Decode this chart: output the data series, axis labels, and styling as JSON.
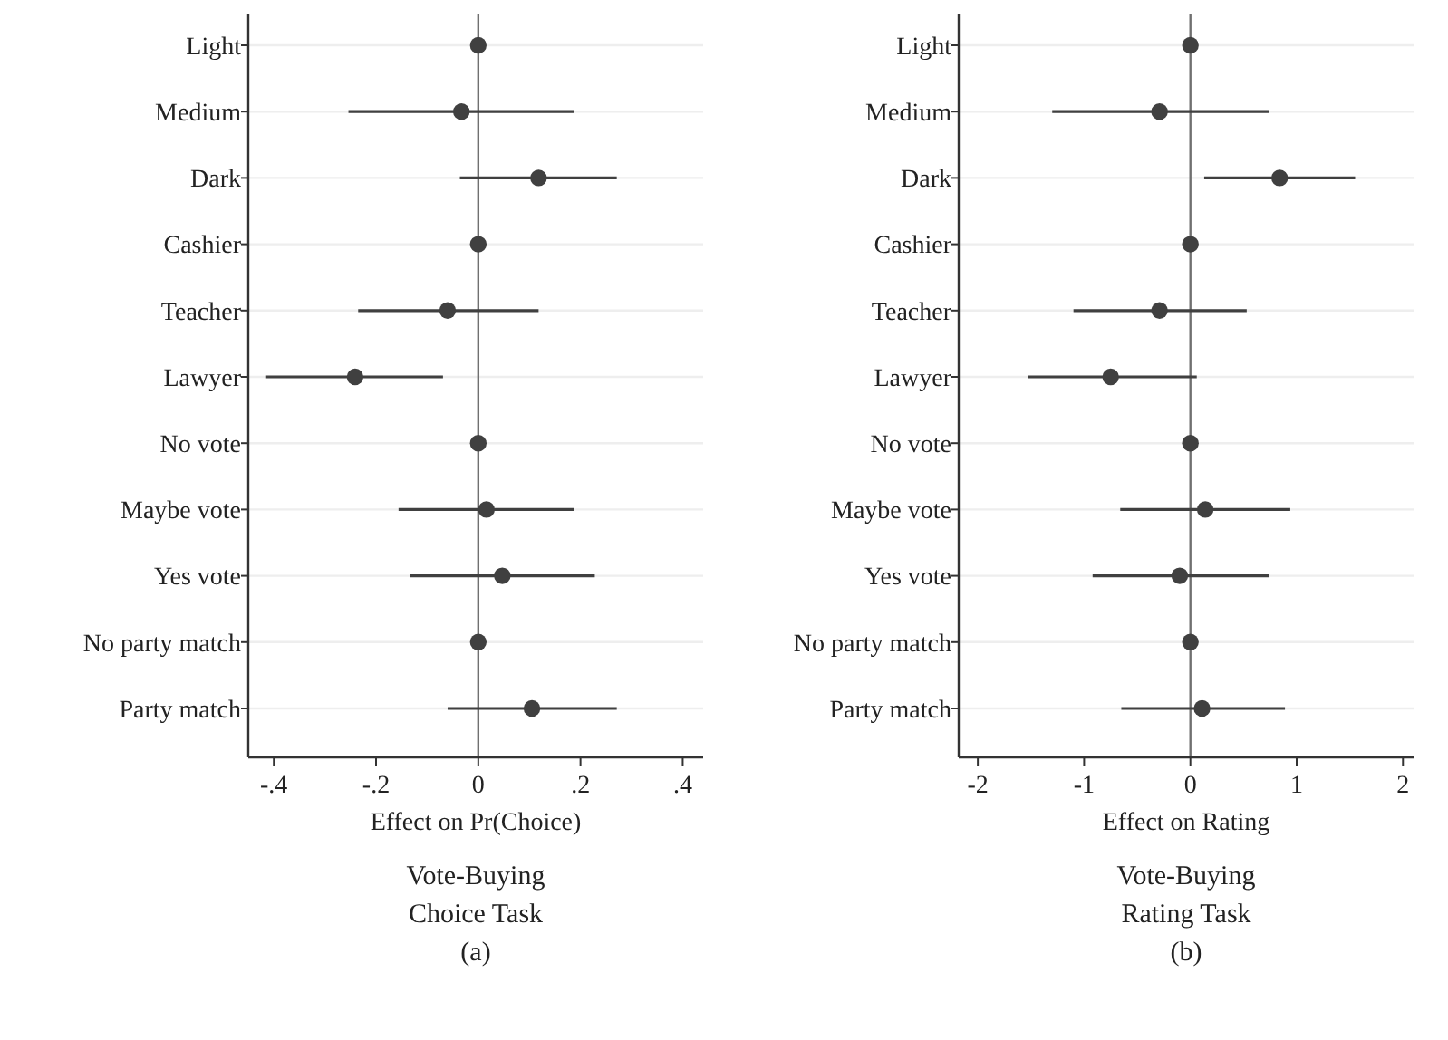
{
  "chart_data": [
    {
      "type": "scatter",
      "orientation": "horizontal",
      "categories": [
        "Light",
        "Medium",
        "Dark",
        "Cashier",
        "Teacher",
        "Lawyer",
        "No vote",
        "Maybe vote",
        "Yes vote",
        "No party match",
        "Party match"
      ],
      "series": [
        {
          "color": "#404040",
          "values": [
            0,
            -0.033,
            0.118,
            0,
            -0.06,
            -0.241,
            0,
            0.016,
            0.047,
            0,
            0.105
          ],
          "errors": [
            null,
            [
              -0.254,
              0.188
            ],
            [
              -0.036,
              0.271
            ],
            null,
            [
              -0.235,
              0.118
            ],
            [
              -0.415,
              -0.069
            ],
            null,
            [
              -0.156,
              0.188
            ],
            [
              -0.134,
              0.228
            ],
            null,
            [
              -0.06,
              0.271
            ]
          ]
        }
      ],
      "xlim": [
        -0.45,
        0.44
      ],
      "xticks": [
        {
          "value": -0.4,
          "label": "-.4"
        },
        {
          "value": -0.2,
          "label": "-.2"
        },
        0,
        {
          "value": 0.2,
          "label": ".2"
        },
        {
          "value": 0.4,
          "label": ".4"
        }
      ],
      "xlabel": "Effect on Pr(Choice)",
      "title": "Vote-Buying Choice Task",
      "subtitle": "(a)",
      "grid": "y",
      "marker": "circle",
      "ref_lines": [
        {
          "axis": "x",
          "value": 0,
          "color": "#707070"
        }
      ]
    },
    {
      "type": "scatter",
      "orientation": "horizontal",
      "categories": [
        "Light",
        "Medium",
        "Dark",
        "Cashier",
        "Teacher",
        "Lawyer",
        "No vote",
        "Maybe vote",
        "Yes vote",
        "No party match",
        "Party match"
      ],
      "series": [
        {
          "color": "#404040",
          "values": [
            0,
            -0.29,
            0.84,
            0,
            -0.29,
            -0.75,
            0,
            0.14,
            -0.1,
            0,
            0.11
          ],
          "errors": [
            null,
            [
              -1.3,
              0.74
            ],
            [
              0.13,
              1.55
            ],
            null,
            [
              -1.1,
              0.53
            ],
            [
              -1.53,
              0.06
            ],
            null,
            [
              -0.66,
              0.94
            ],
            [
              -0.92,
              0.74
            ],
            null,
            [
              -0.65,
              0.89
            ]
          ]
        }
      ],
      "xlim": [
        -2.18,
        2.1
      ],
      "xticks": [
        -2,
        -1,
        0,
        1,
        2
      ],
      "xlabel": "Effect on Rating",
      "title": "Vote-Buying Rating Task",
      "subtitle": "(b)",
      "grid": "y",
      "marker": "circle",
      "ref_lines": [
        {
          "axis": "x",
          "value": 0,
          "color": "#707070"
        }
      ]
    }
  ]
}
